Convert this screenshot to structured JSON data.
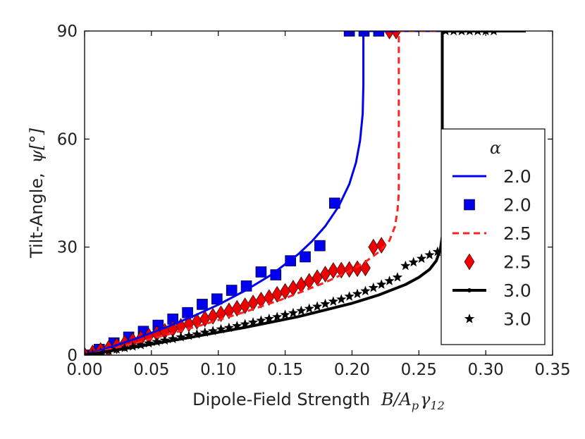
{
  "chart_data": {
    "type": "line",
    "title": "",
    "xlabel_text": "Dipole-Field Strength",
    "xlabel_math": "B/A",
    "xlabel_sub1": "p",
    "xlabel_gamma": "γ",
    "xlabel_sub2": "12",
    "ylabel_text": "Tilt-Angle,",
    "ylabel_math": "ψ[°]",
    "xlim": [
      0.0,
      0.35
    ],
    "ylim": [
      0,
      90
    ],
    "xticks": [
      0.0,
      0.05,
      0.1,
      0.15,
      0.2,
      0.25,
      0.3,
      0.35
    ],
    "xtick_labels": [
      "0.00",
      "0.05",
      "0.10",
      "0.15",
      "0.20",
      "0.25",
      "0.30",
      "0.35"
    ],
    "yticks": [
      0,
      30,
      60,
      90
    ],
    "ytick_labels": [
      "0",
      "30",
      "60",
      "90"
    ],
    "legend_title": "α",
    "legend_position": "center-right",
    "series": [
      {
        "name": "2.0",
        "kind": "line",
        "color": "#0000ee",
        "style": "solid",
        "x": [
          0.0,
          0.02,
          0.04,
          0.06,
          0.08,
          0.1,
          0.12,
          0.14,
          0.16,
          0.17,
          0.18,
          0.19,
          0.198,
          0.203,
          0.206,
          0.208,
          0.2085,
          0.2085,
          0.33
        ],
        "y": [
          0,
          2.3,
          4.8,
          7.6,
          10.6,
          14,
          17.9,
          22.4,
          28.1,
          31.6,
          35.8,
          41.3,
          47.5,
          53.5,
          59.5,
          67,
          75,
          90,
          90
        ]
      },
      {
        "name": "2.0",
        "kind": "markers",
        "marker": "square",
        "color": "#0000ee",
        "x": [
          0.0,
          0.011,
          0.022,
          0.033,
          0.044,
          0.055,
          0.066,
          0.077,
          0.088,
          0.099,
          0.11,
          0.121,
          0.132,
          0.143,
          0.154,
          0.165,
          0.176,
          0.187,
          0.198,
          0.209,
          0.22
        ],
        "y": [
          0,
          1.6,
          3.4,
          5,
          6.6,
          8.3,
          10,
          11.8,
          14.1,
          15.6,
          18,
          19.2,
          23.1,
          22.3,
          26.2,
          27.3,
          30.4,
          42.2,
          90,
          90,
          90
        ]
      },
      {
        "name": "2.5",
        "kind": "line",
        "color": "#ff2222",
        "style": "dashed",
        "x": [
          0.0,
          0.03,
          0.06,
          0.09,
          0.12,
          0.15,
          0.18,
          0.2,
          0.21,
          0.22,
          0.228,
          0.232,
          0.234,
          0.235,
          0.235,
          0.33
        ],
        "y": [
          0,
          2.6,
          5.5,
          8.6,
          12,
          15.8,
          20.2,
          23.7,
          25.9,
          28.6,
          31.8,
          35.6,
          40,
          45,
          90,
          90
        ]
      },
      {
        "name": "2.5",
        "kind": "markers",
        "marker": "diamond",
        "color": "#ee0000",
        "x": [
          0.0,
          0.006,
          0.012,
          0.018,
          0.024,
          0.03,
          0.036,
          0.042,
          0.048,
          0.054,
          0.06,
          0.066,
          0.072,
          0.078,
          0.084,
          0.09,
          0.096,
          0.102,
          0.108,
          0.114,
          0.12,
          0.126,
          0.132,
          0.138,
          0.144,
          0.15,
          0.156,
          0.162,
          0.168,
          0.174,
          0.18,
          0.186,
          0.192,
          0.198,
          0.204,
          0.21,
          0.216,
          0.222,
          0.228,
          0.233
        ],
        "y": [
          0,
          0.6,
          1.3,
          1.9,
          2.6,
          3.3,
          4,
          4.6,
          5.3,
          6,
          6.6,
          7.3,
          8,
          8.7,
          9.4,
          10.1,
          10.8,
          11.5,
          12.3,
          13,
          13.7,
          14.5,
          15.3,
          16,
          16.9,
          17.7,
          18.6,
          19.5,
          20.5,
          21.5,
          22.5,
          23.5,
          23.6,
          23.8,
          24,
          24.2,
          30,
          30.5,
          90,
          90
        ]
      },
      {
        "name": "3.0",
        "kind": "line",
        "color": "#000000",
        "style": "solid",
        "x": [
          0.0,
          0.04,
          0.08,
          0.12,
          0.16,
          0.2,
          0.22,
          0.24,
          0.25,
          0.258,
          0.263,
          0.266,
          0.2675,
          0.2675,
          0.33
        ],
        "y": [
          0,
          2.4,
          5,
          7.7,
          10.7,
          14.4,
          16.7,
          19.6,
          21.6,
          23.8,
          26.2,
          29.2,
          33,
          90,
          90
        ]
      },
      {
        "name": "3.0",
        "kind": "markers",
        "marker": "star",
        "color": "#000000",
        "x": [
          0.0,
          0.006,
          0.012,
          0.018,
          0.024,
          0.03,
          0.036,
          0.042,
          0.048,
          0.054,
          0.06,
          0.066,
          0.072,
          0.078,
          0.084,
          0.09,
          0.096,
          0.102,
          0.108,
          0.114,
          0.12,
          0.126,
          0.132,
          0.138,
          0.144,
          0.15,
          0.156,
          0.162,
          0.168,
          0.174,
          0.18,
          0.186,
          0.192,
          0.198,
          0.204,
          0.21,
          0.216,
          0.222,
          0.228,
          0.234,
          0.24,
          0.246,
          0.252,
          0.258,
          0.264,
          0.27,
          0.276,
          0.282,
          0.288,
          0.294,
          0.3,
          0.306
        ],
        "y": [
          0,
          0.4,
          0.8,
          1.2,
          1.6,
          2,
          2.4,
          2.8,
          3.3,
          3.7,
          4.1,
          4.5,
          5,
          5.4,
          5.8,
          6.3,
          6.7,
          7.2,
          7.6,
          8.1,
          8.6,
          9.1,
          9.6,
          10.1,
          10.6,
          11.2,
          11.7,
          12.3,
          12.9,
          13.5,
          14.2,
          14.9,
          15.5,
          16.3,
          17,
          17.8,
          18.7,
          19.6,
          20.6,
          21.6,
          24.8,
          25.8,
          26.8,
          27.8,
          28.7,
          90,
          90,
          90,
          90,
          90,
          90,
          90
        ]
      }
    ]
  }
}
